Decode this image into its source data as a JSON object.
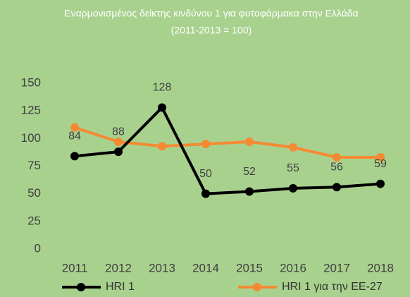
{
  "chart_data": {
    "type": "line",
    "title": "Εναρμονισμένος δείκτης κινδύνου 1 για φυτοφάρμακα στην Ελλάδα",
    "subtitle": "(2011-2013 = 100)",
    "categories": [
      "2011",
      "2012",
      "2013",
      "2014",
      "2015",
      "2016",
      "2017",
      "2018"
    ],
    "series": [
      {
        "name": "HRI 1",
        "color": "#000000",
        "values": [
          84,
          88,
          128,
          50,
          52,
          55,
          56,
          59
        ],
        "data_labels": true
      },
      {
        "name": "HRI 1 για την ΕΕ-27",
        "color": "#f58a33",
        "values": [
          110,
          97,
          93,
          95,
          97,
          92,
          83,
          83
        ],
        "data_labels": false
      }
    ],
    "ylim": [
      0,
      150
    ],
    "yticks": [
      0,
      25,
      50,
      75,
      100,
      125,
      150
    ],
    "grid": false,
    "legend": "bottom"
  }
}
